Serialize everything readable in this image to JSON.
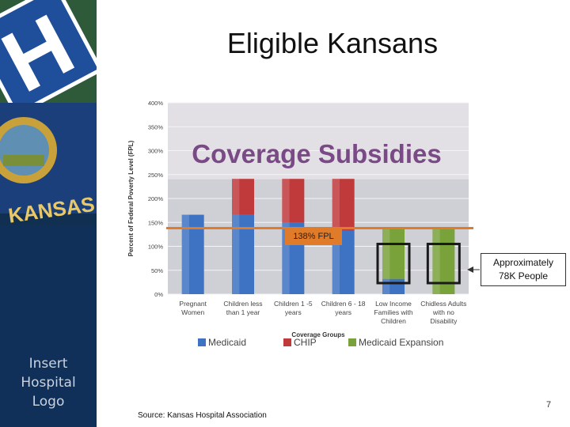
{
  "slide": {
    "title": "Eligible Kansans",
    "source": "Source: Kansas Hospital Association",
    "page_number": "7",
    "logo_text_lines": [
      "Insert",
      "Hospital",
      "Logo"
    ],
    "sidebar_banner_text": "KANSAS"
  },
  "annotations": {
    "fpl_line_label": "138% FPL",
    "callout_lines": [
      "Approximately",
      "78K People"
    ]
  },
  "colors": {
    "medicaid": "#3e72c2",
    "chip": "#c0393b",
    "medicaid_expansion": "#7aa23a",
    "fpl_line": "#e07b2a",
    "overlay_title": "#7a4a86",
    "plot_bg": "#cfcfd6"
  },
  "chart_data": {
    "type": "bar",
    "title": "Coverage Subsidies",
    "xlabel": "Coverage Groups",
    "ylabel": "Percent of Federal Poverty Level (FPL)",
    "ylim": [
      0,
      400
    ],
    "ytick_labels": [
      "0%",
      "50%",
      "100%",
      "150%",
      "200%",
      "250%",
      "300%",
      "350%",
      "400%"
    ],
    "yticks": [
      0,
      50,
      100,
      150,
      200,
      250,
      300,
      350,
      400
    ],
    "grid": true,
    "legend_position": "bottom",
    "categories": [
      [
        "Pregnant",
        "Women"
      ],
      [
        "Children less",
        "than 1 year"
      ],
      [
        "Children 1 -5",
        "years"
      ],
      [
        "Children 6 - 18",
        "years"
      ],
      [
        "Low Income",
        "Families with",
        "Children"
      ],
      [
        "Chidless Adults",
        "with no",
        "Disability"
      ]
    ],
    "series": [
      {
        "name": "Medicaid",
        "values": [
          166,
          166,
          149,
          133,
          32,
          0
        ]
      },
      {
        "name": "CHIP",
        "values": [
          0,
          75,
          92,
          108,
          0,
          0
        ]
      },
      {
        "name": "Medicaid Expansion",
        "values": [
          0,
          0,
          0,
          0,
          106,
          138
        ]
      }
    ],
    "reference_line": {
      "label": "138% FPL",
      "value": 138
    }
  }
}
